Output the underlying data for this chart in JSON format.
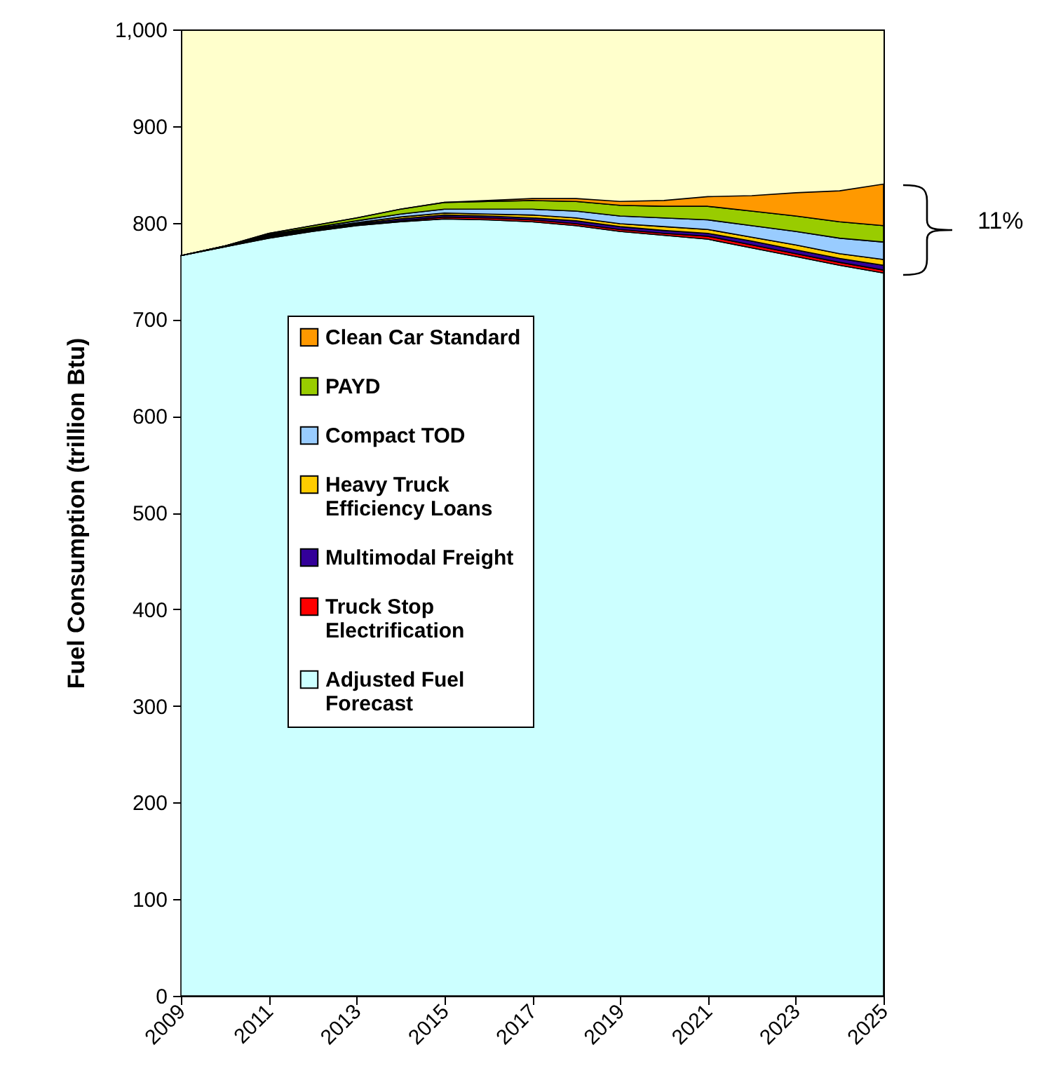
{
  "chart_data": {
    "type": "area",
    "stacked": true,
    "ylabel": "Fuel Consumption (trillion Btu)",
    "x": [
      2009,
      2010,
      2011,
      2012,
      2013,
      2014,
      2015,
      2016,
      2017,
      2018,
      2019,
      2020,
      2021,
      2022,
      2023,
      2024,
      2025
    ],
    "xlim": [
      2009,
      2025
    ],
    "xticks": [
      2009,
      2011,
      2013,
      2015,
      2017,
      2019,
      2021,
      2023,
      2025
    ],
    "ylim": [
      0,
      1000
    ],
    "yticks": [
      0,
      100,
      200,
      300,
      400,
      500,
      600,
      700,
      800,
      900,
      {
        "value": 1000,
        "label": "1,000"
      }
    ],
    "grid": false,
    "legend": "left",
    "series": [
      {
        "name": "Adjusted Fuel Forecast",
        "color": "#ccffff",
        "values": [
          766,
          775,
          784,
          791,
          797,
          801,
          804,
          803,
          801,
          797,
          791,
          787,
          783,
          774,
          765,
          756,
          748
        ]
      },
      {
        "name": "Truck Stop Electrification",
        "color": "#ff0000",
        "values": [
          0,
          0,
          1,
          1,
          1,
          1,
          2,
          2,
          2,
          2,
          2,
          2,
          3,
          3,
          3,
          3,
          3
        ]
      },
      {
        "name": "Multimodal Freight",
        "color": "#330099",
        "values": [
          0,
          1,
          1,
          1,
          1,
          2,
          2,
          2,
          2,
          3,
          3,
          3,
          3,
          4,
          4,
          4,
          5
        ]
      },
      {
        "name": "Heavy Truck Efficiency Loans",
        "color": "#ffcc00",
        "values": [
          0,
          0,
          1,
          1,
          1,
          2,
          2,
          2,
          3,
          3,
          3,
          4,
          4,
          4,
          5,
          5,
          6
        ]
      },
      {
        "name": "Compact TOD",
        "color": "#99ccff",
        "values": [
          0,
          0,
          1,
          1,
          2,
          3,
          4,
          5,
          6,
          7,
          8,
          9,
          10,
          12,
          14,
          16,
          18
        ]
      },
      {
        "name": "PAYD",
        "color": "#99cc00",
        "values": [
          0,
          0,
          1,
          2,
          3,
          5,
          7,
          8,
          9,
          10,
          11,
          12,
          14,
          15,
          16,
          17,
          17
        ]
      },
      {
        "name": "Clean Car Standard",
        "color": "#ff9900",
        "values": [
          0,
          0,
          0,
          0,
          0,
          0,
          0,
          1,
          2,
          3,
          4,
          6,
          10,
          16,
          24,
          32,
          43
        ]
      }
    ],
    "annotations": [
      "11%"
    ]
  }
}
